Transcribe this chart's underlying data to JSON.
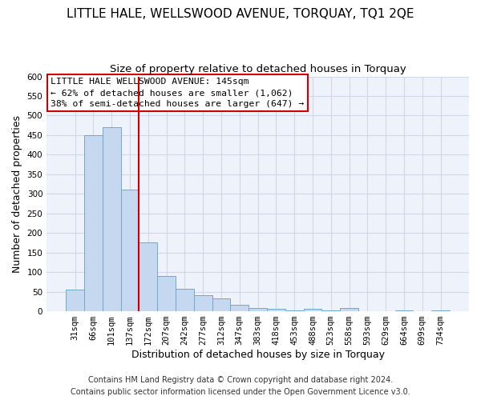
{
  "title": "LITTLE HALE, WELLSWOOD AVENUE, TORQUAY, TQ1 2QE",
  "subtitle": "Size of property relative to detached houses in Torquay",
  "xlabel": "Distribution of detached houses by size in Torquay",
  "ylabel": "Number of detached properties",
  "bar_labels": [
    "31sqm",
    "66sqm",
    "101sqm",
    "137sqm",
    "172sqm",
    "207sqm",
    "242sqm",
    "277sqm",
    "312sqm",
    "347sqm",
    "383sqm",
    "418sqm",
    "453sqm",
    "488sqm",
    "523sqm",
    "558sqm",
    "593sqm",
    "629sqm",
    "664sqm",
    "699sqm",
    "734sqm"
  ],
  "bar_values": [
    55,
    450,
    470,
    310,
    175,
    90,
    58,
    42,
    32,
    16,
    8,
    6,
    2,
    6,
    2,
    8,
    0,
    0,
    2,
    0,
    2
  ],
  "bar_color": "#c5d8ef",
  "bar_edge_color": "#6fa8d0",
  "vline_x_index": 3,
  "vline_color": "#cc0000",
  "ylim": [
    0,
    600
  ],
  "yticks": [
    0,
    50,
    100,
    150,
    200,
    250,
    300,
    350,
    400,
    450,
    500,
    550,
    600
  ],
  "annotation_title": "LITTLE HALE WELLSWOOD AVENUE: 145sqm",
  "annotation_line1": "← 62% of detached houses are smaller (1,062)",
  "annotation_line2": "38% of semi-detached houses are larger (647) →",
  "annotation_box_color": "#ffffff",
  "annotation_box_edge": "#cc0000",
  "footer_line1": "Contains HM Land Registry data © Crown copyright and database right 2024.",
  "footer_line2": "Contains public sector information licensed under the Open Government Licence v3.0.",
  "bg_color": "#ffffff",
  "plot_bg_color": "#eef2fb",
  "title_fontsize": 11,
  "subtitle_fontsize": 9.5,
  "axis_label_fontsize": 9,
  "tick_fontsize": 7.5,
  "footer_fontsize": 7,
  "grid_color": "#d0d8e8"
}
